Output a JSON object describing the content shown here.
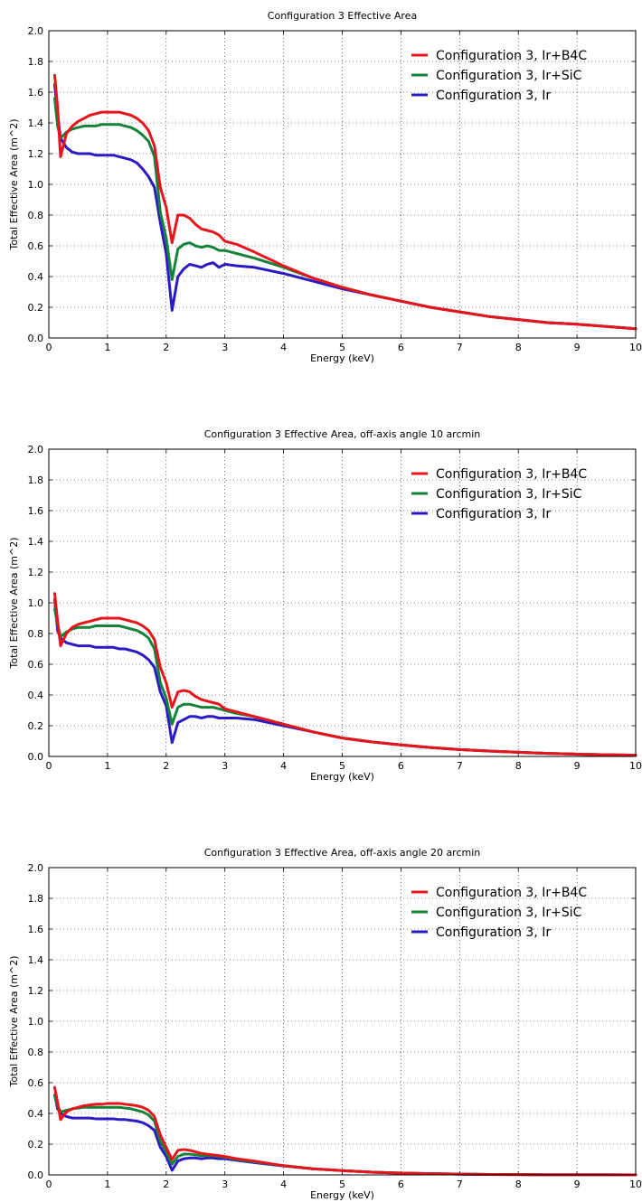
{
  "chart_data": [
    {
      "type": "line",
      "title": "Configuration 3 Effective Area",
      "xlabel": "Energy (keV)",
      "ylabel": "Total Effective Area (m^2)",
      "xlim": [
        0,
        10
      ],
      "ylim": [
        0,
        2.0
      ],
      "xticks": [
        0,
        1,
        2,
        3,
        4,
        5,
        6,
        7,
        8,
        9,
        10
      ],
      "yticks": [
        0.0,
        0.2,
        0.4,
        0.6,
        0.8,
        1.0,
        1.2,
        1.4,
        1.6,
        1.8,
        2.0
      ],
      "xtick_labels": [
        "0",
        "1",
        "2",
        "3",
        "4",
        "5",
        "6",
        "7",
        "8",
        "9",
        "10"
      ],
      "ytick_labels": [
        "0.0",
        "0.2",
        "0.4",
        "0.6",
        "0.8",
        "1.0",
        "1.2",
        "1.4",
        "1.6",
        "1.8",
        "2.0"
      ],
      "grid": true,
      "legend_position": "top-right",
      "series": [
        {
          "name": "Configuration 3, Ir+B4C",
          "color": "#e8141c",
          "x": [
            0.1,
            0.15,
            0.2,
            0.3,
            0.4,
            0.5,
            0.6,
            0.7,
            0.8,
            0.9,
            1.0,
            1.1,
            1.2,
            1.3,
            1.4,
            1.5,
            1.6,
            1.7,
            1.8,
            1.9,
            2.0,
            2.1,
            2.2,
            2.3,
            2.4,
            2.5,
            2.6,
            2.7,
            2.8,
            2.9,
            3.0,
            3.2,
            3.5,
            4.0,
            4.5,
            5.0,
            5.5,
            6.0,
            6.5,
            7.0,
            7.5,
            8.0,
            8.5,
            9.0,
            9.5,
            10.0
          ],
          "y": [
            1.71,
            1.5,
            1.18,
            1.33,
            1.38,
            1.41,
            1.43,
            1.45,
            1.46,
            1.47,
            1.47,
            1.47,
            1.47,
            1.46,
            1.45,
            1.43,
            1.4,
            1.35,
            1.25,
            0.98,
            0.85,
            0.62,
            0.8,
            0.8,
            0.78,
            0.74,
            0.71,
            0.7,
            0.69,
            0.67,
            0.63,
            0.61,
            0.56,
            0.47,
            0.39,
            0.33,
            0.28,
            0.24,
            0.2,
            0.17,
            0.14,
            0.12,
            0.1,
            0.09,
            0.075,
            0.06
          ]
        },
        {
          "name": "Configuration 3, Ir+SiC",
          "color": "#15823a",
          "x": [
            0.1,
            0.15,
            0.2,
            0.3,
            0.4,
            0.5,
            0.6,
            0.7,
            0.8,
            0.9,
            1.0,
            1.1,
            1.2,
            1.3,
            1.4,
            1.5,
            1.6,
            1.7,
            1.8,
            1.9,
            2.0,
            2.1,
            2.2,
            2.3,
            2.4,
            2.5,
            2.6,
            2.7,
            2.8,
            2.9,
            3.0,
            3.2,
            3.5,
            4.0,
            4.5,
            5.0,
            5.5,
            6.0,
            6.5,
            7.0,
            7.5,
            8.0,
            8.5,
            9.0,
            9.5,
            10.0
          ],
          "y": [
            1.56,
            1.38,
            1.3,
            1.34,
            1.36,
            1.37,
            1.38,
            1.38,
            1.38,
            1.39,
            1.39,
            1.39,
            1.39,
            1.38,
            1.37,
            1.35,
            1.32,
            1.28,
            1.18,
            0.82,
            0.65,
            0.38,
            0.58,
            0.61,
            0.62,
            0.6,
            0.59,
            0.6,
            0.59,
            0.57,
            0.57,
            0.55,
            0.52,
            0.46,
            0.39,
            0.33,
            0.28,
            0.24,
            0.2,
            0.17,
            0.14,
            0.12,
            0.1,
            0.09,
            0.075,
            0.06
          ]
        },
        {
          "name": "Configuration 3, Ir",
          "color": "#2b19c2",
          "x": [
            0.1,
            0.15,
            0.2,
            0.3,
            0.4,
            0.5,
            0.6,
            0.7,
            0.8,
            0.9,
            1.0,
            1.1,
            1.2,
            1.3,
            1.4,
            1.5,
            1.6,
            1.7,
            1.8,
            1.9,
            2.0,
            2.1,
            2.2,
            2.3,
            2.4,
            2.5,
            2.6,
            2.7,
            2.8,
            2.9,
            3.0,
            3.2,
            3.5,
            4.0,
            4.5,
            5.0,
            5.5,
            6.0,
            6.5,
            7.0,
            7.5,
            8.0,
            8.5,
            9.0,
            9.5,
            10.0
          ],
          "y": [
            1.65,
            1.45,
            1.3,
            1.24,
            1.21,
            1.2,
            1.2,
            1.2,
            1.19,
            1.19,
            1.19,
            1.19,
            1.18,
            1.17,
            1.16,
            1.14,
            1.1,
            1.05,
            0.98,
            0.75,
            0.55,
            0.18,
            0.4,
            0.45,
            0.48,
            0.47,
            0.46,
            0.48,
            0.49,
            0.46,
            0.48,
            0.47,
            0.46,
            0.42,
            0.37,
            0.32,
            0.28,
            0.24,
            0.2,
            0.17,
            0.14,
            0.12,
            0.1,
            0.09,
            0.075,
            0.06
          ]
        }
      ]
    },
    {
      "type": "line",
      "title": "Configuration 3 Effective Area,  off-axis angle 10 arcmin",
      "xlabel": "Energy (keV)",
      "ylabel": "Total Effective Area (m^2)",
      "xlim": [
        0,
        10
      ],
      "ylim": [
        0,
        2.0
      ],
      "xticks": [
        0,
        1,
        2,
        3,
        4,
        5,
        6,
        7,
        8,
        9,
        10
      ],
      "yticks": [
        0.0,
        0.2,
        0.4,
        0.6,
        0.8,
        1.0,
        1.2,
        1.4,
        1.6,
        1.8,
        2.0
      ],
      "xtick_labels": [
        "0",
        "1",
        "2",
        "3",
        "4",
        "5",
        "6",
        "7",
        "8",
        "9",
        "10"
      ],
      "ytick_labels": [
        "0.0",
        "0.2",
        "0.4",
        "0.6",
        "0.8",
        "1.0",
        "1.2",
        "1.4",
        "1.6",
        "1.8",
        "2.0"
      ],
      "grid": true,
      "legend_position": "top-right",
      "series": [
        {
          "name": "Configuration 3, Ir+B4C",
          "color": "#e8141c",
          "x": [
            0.1,
            0.15,
            0.2,
            0.3,
            0.4,
            0.5,
            0.6,
            0.7,
            0.8,
            0.9,
            1.0,
            1.1,
            1.2,
            1.3,
            1.4,
            1.5,
            1.6,
            1.7,
            1.8,
            1.9,
            2.0,
            2.1,
            2.2,
            2.3,
            2.4,
            2.5,
            2.6,
            2.7,
            2.8,
            2.9,
            3.0,
            3.2,
            3.5,
            4.0,
            4.5,
            5.0,
            5.5,
            6.0,
            6.5,
            7.0,
            7.5,
            8.0,
            8.5,
            9.0,
            9.5,
            10.0
          ],
          "y": [
            1.06,
            0.88,
            0.72,
            0.8,
            0.84,
            0.86,
            0.87,
            0.88,
            0.89,
            0.9,
            0.9,
            0.9,
            0.9,
            0.89,
            0.88,
            0.87,
            0.85,
            0.82,
            0.76,
            0.58,
            0.48,
            0.32,
            0.42,
            0.43,
            0.42,
            0.39,
            0.37,
            0.36,
            0.35,
            0.34,
            0.31,
            0.29,
            0.26,
            0.21,
            0.16,
            0.12,
            0.095,
            0.075,
            0.058,
            0.045,
            0.035,
            0.027,
            0.02,
            0.015,
            0.011,
            0.008
          ]
        },
        {
          "name": "Configuration 3, Ir+SiC",
          "color": "#15823a",
          "x": [
            0.1,
            0.15,
            0.2,
            0.3,
            0.4,
            0.5,
            0.6,
            0.7,
            0.8,
            0.9,
            1.0,
            1.1,
            1.2,
            1.3,
            1.4,
            1.5,
            1.6,
            1.7,
            1.8,
            1.9,
            2.0,
            2.1,
            2.2,
            2.3,
            2.4,
            2.5,
            2.6,
            2.7,
            2.8,
            2.9,
            3.0,
            3.2,
            3.5,
            4.0,
            4.5,
            5.0,
            5.5,
            6.0,
            6.5,
            7.0,
            7.5,
            8.0,
            8.5,
            9.0,
            9.5,
            10.0
          ],
          "y": [
            0.96,
            0.86,
            0.78,
            0.81,
            0.83,
            0.84,
            0.84,
            0.84,
            0.85,
            0.85,
            0.85,
            0.85,
            0.85,
            0.84,
            0.83,
            0.82,
            0.8,
            0.77,
            0.7,
            0.48,
            0.38,
            0.21,
            0.32,
            0.34,
            0.34,
            0.33,
            0.32,
            0.32,
            0.32,
            0.31,
            0.3,
            0.28,
            0.26,
            0.21,
            0.16,
            0.12,
            0.095,
            0.075,
            0.058,
            0.045,
            0.035,
            0.027,
            0.02,
            0.015,
            0.011,
            0.008
          ]
        },
        {
          "name": "Configuration 3, Ir",
          "color": "#2b19c2",
          "x": [
            0.1,
            0.15,
            0.2,
            0.3,
            0.4,
            0.5,
            0.6,
            0.7,
            0.8,
            0.9,
            1.0,
            1.1,
            1.2,
            1.3,
            1.4,
            1.5,
            1.6,
            1.7,
            1.8,
            1.9,
            2.0,
            2.1,
            2.2,
            2.3,
            2.4,
            2.5,
            2.6,
            2.7,
            2.8,
            2.9,
            3.0,
            3.2,
            3.5,
            4.0,
            4.5,
            5.0,
            5.5,
            6.0,
            6.5,
            7.0,
            7.5,
            8.0,
            8.5,
            9.0,
            9.5,
            10.0
          ],
          "y": [
            1.02,
            0.82,
            0.77,
            0.74,
            0.73,
            0.72,
            0.72,
            0.72,
            0.71,
            0.71,
            0.71,
            0.71,
            0.7,
            0.7,
            0.69,
            0.68,
            0.66,
            0.63,
            0.58,
            0.42,
            0.33,
            0.09,
            0.22,
            0.24,
            0.26,
            0.26,
            0.25,
            0.26,
            0.26,
            0.25,
            0.25,
            0.25,
            0.24,
            0.2,
            0.16,
            0.12,
            0.095,
            0.075,
            0.058,
            0.045,
            0.035,
            0.027,
            0.02,
            0.015,
            0.011,
            0.008
          ]
        }
      ]
    },
    {
      "type": "line",
      "title": "Configuration 3 Effective Area,  off-axis angle 20 arcmin",
      "xlabel": "Energy (keV)",
      "ylabel": "Total Effective Area (m^2)",
      "xlim": [
        0,
        10
      ],
      "ylim": [
        0,
        2.0
      ],
      "xticks": [
        0,
        1,
        2,
        3,
        4,
        5,
        6,
        7,
        8,
        9,
        10
      ],
      "yticks": [
        0.0,
        0.2,
        0.4,
        0.6,
        0.8,
        1.0,
        1.2,
        1.4,
        1.6,
        1.8,
        2.0
      ],
      "xtick_labels": [
        "0",
        "1",
        "2",
        "3",
        "4",
        "5",
        "6",
        "7",
        "8",
        "9",
        "10"
      ],
      "ytick_labels": [
        "0.0",
        "0.2",
        "0.4",
        "0.6",
        "0.8",
        "1.0",
        "1.2",
        "1.4",
        "1.6",
        "1.8",
        "2.0"
      ],
      "grid": true,
      "legend_position": "top-right",
      "series": [
        {
          "name": "Configuration 3, Ir+B4C",
          "color": "#e8141c",
          "x": [
            0.1,
            0.15,
            0.2,
            0.3,
            0.4,
            0.5,
            0.6,
            0.7,
            0.8,
            0.9,
            1.0,
            1.1,
            1.2,
            1.3,
            1.4,
            1.5,
            1.6,
            1.7,
            1.8,
            1.9,
            2.0,
            2.1,
            2.2,
            2.3,
            2.4,
            2.5,
            2.6,
            2.7,
            2.8,
            2.9,
            3.0,
            3.2,
            3.5,
            4.0,
            4.5,
            5.0,
            5.5,
            6.0,
            6.5,
            7.0,
            7.5,
            8.0,
            8.5,
            9.0,
            9.5,
            10.0
          ],
          "y": [
            0.57,
            0.47,
            0.36,
            0.41,
            0.43,
            0.44,
            0.45,
            0.455,
            0.46,
            0.46,
            0.465,
            0.465,
            0.465,
            0.46,
            0.455,
            0.45,
            0.44,
            0.42,
            0.38,
            0.26,
            0.18,
            0.1,
            0.16,
            0.165,
            0.16,
            0.15,
            0.14,
            0.135,
            0.13,
            0.125,
            0.12,
            0.105,
            0.09,
            0.06,
            0.04,
            0.028,
            0.018,
            0.012,
            0.008,
            0.005,
            0.003,
            0.002,
            0.001,
            0.001,
            0.0005,
            0.0003
          ]
        },
        {
          "name": "Configuration 3, Ir+SiC",
          "color": "#15823a",
          "x": [
            0.1,
            0.15,
            0.2,
            0.3,
            0.4,
            0.5,
            0.6,
            0.7,
            0.8,
            0.9,
            1.0,
            1.1,
            1.2,
            1.3,
            1.4,
            1.5,
            1.6,
            1.7,
            1.8,
            1.9,
            2.0,
            2.1,
            2.2,
            2.3,
            2.4,
            2.5,
            2.6,
            2.7,
            2.8,
            2.9,
            3.0,
            3.2,
            3.5,
            4.0,
            4.5,
            5.0,
            5.5,
            6.0,
            6.5,
            7.0,
            7.5,
            8.0,
            8.5,
            9.0,
            9.5,
            10.0
          ],
          "y": [
            0.52,
            0.45,
            0.41,
            0.42,
            0.43,
            0.435,
            0.44,
            0.44,
            0.44,
            0.44,
            0.44,
            0.44,
            0.44,
            0.435,
            0.43,
            0.42,
            0.41,
            0.39,
            0.35,
            0.22,
            0.15,
            0.07,
            0.12,
            0.135,
            0.135,
            0.13,
            0.125,
            0.125,
            0.125,
            0.12,
            0.115,
            0.1,
            0.085,
            0.06,
            0.04,
            0.028,
            0.018,
            0.012,
            0.008,
            0.005,
            0.003,
            0.002,
            0.001,
            0.001,
            0.0005,
            0.0003
          ]
        },
        {
          "name": "Configuration 3, Ir",
          "color": "#2b19c2",
          "x": [
            0.1,
            0.15,
            0.2,
            0.3,
            0.4,
            0.5,
            0.6,
            0.7,
            0.8,
            0.9,
            1.0,
            1.1,
            1.2,
            1.3,
            1.4,
            1.5,
            1.6,
            1.7,
            1.8,
            1.9,
            2.0,
            2.1,
            2.2,
            2.3,
            2.4,
            2.5,
            2.6,
            2.7,
            2.8,
            2.9,
            3.0,
            3.2,
            3.5,
            4.0,
            4.5,
            5.0,
            5.5,
            6.0,
            6.5,
            7.0,
            7.5,
            8.0,
            8.5,
            9.0,
            9.5,
            10.0
          ],
          "y": [
            0.52,
            0.43,
            0.4,
            0.38,
            0.37,
            0.37,
            0.37,
            0.37,
            0.365,
            0.365,
            0.365,
            0.365,
            0.36,
            0.36,
            0.355,
            0.35,
            0.34,
            0.32,
            0.29,
            0.18,
            0.12,
            0.03,
            0.09,
            0.105,
            0.11,
            0.11,
            0.105,
            0.11,
            0.11,
            0.105,
            0.105,
            0.095,
            0.08,
            0.058,
            0.04,
            0.028,
            0.018,
            0.012,
            0.008,
            0.005,
            0.003,
            0.002,
            0.001,
            0.001,
            0.0005,
            0.0003
          ]
        }
      ]
    }
  ]
}
